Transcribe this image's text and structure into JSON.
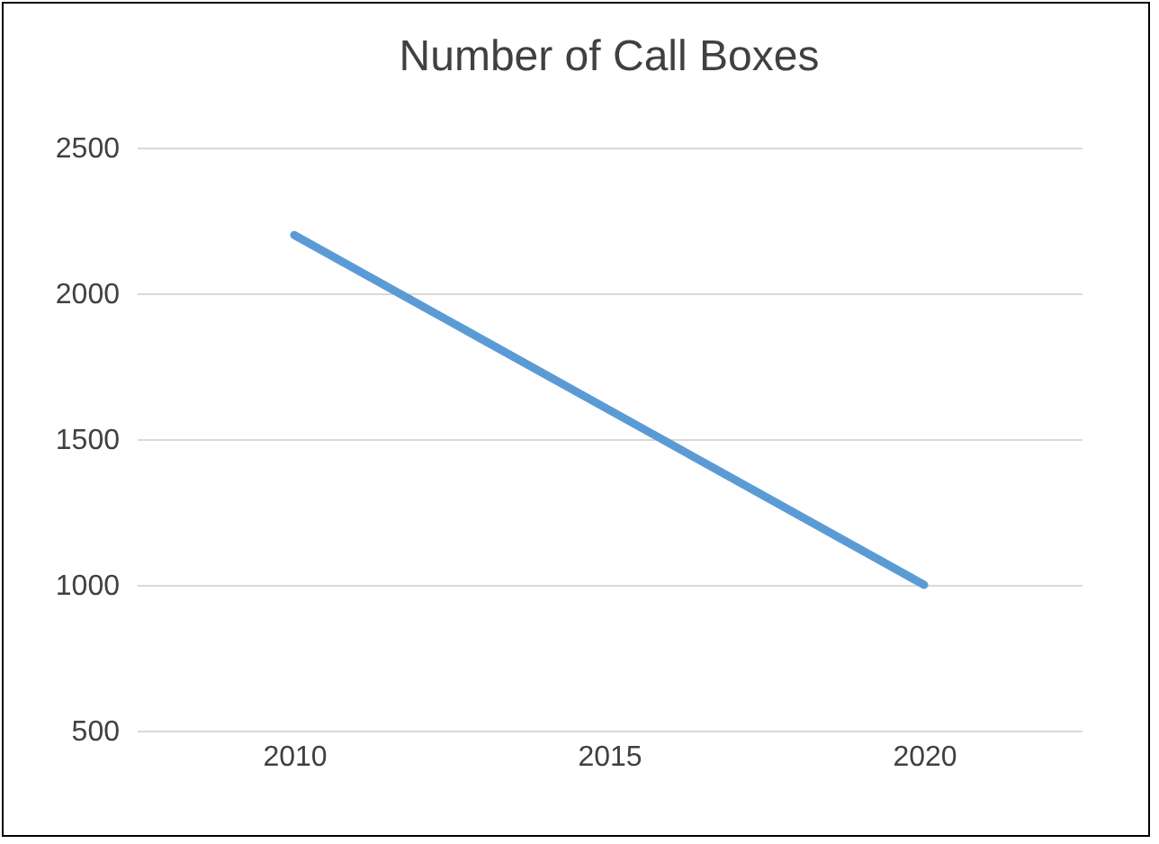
{
  "chart_data": {
    "type": "line",
    "title": "Number of Call Boxes",
    "categories": [
      "2010",
      "2015",
      "2020"
    ],
    "series": [
      {
        "color": "#5b9bd5",
        "values": [
          2200,
          1600,
          1000
        ]
      }
    ],
    "ylim": [
      500,
      2500
    ],
    "yticks": [
      500,
      1000,
      1500,
      2000,
      2500
    ],
    "grid": "y",
    "marker": "none",
    "line_style": "solid"
  }
}
